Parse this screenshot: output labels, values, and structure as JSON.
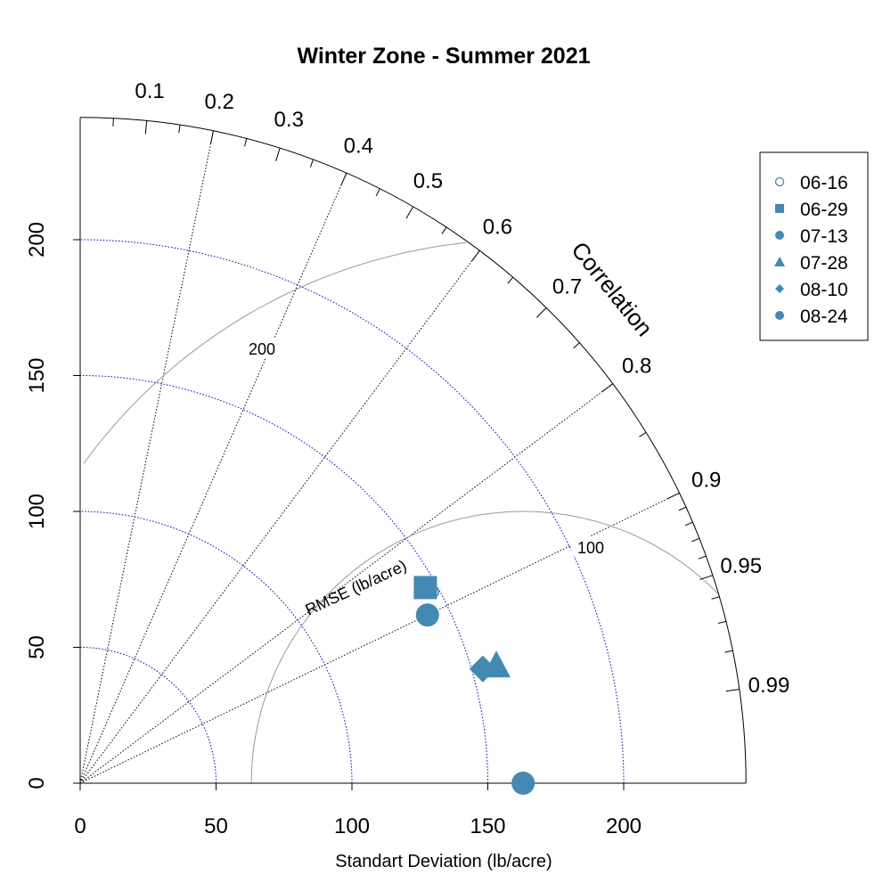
{
  "chart_data": {
    "type": "scatter",
    "subtype": "taylor-diagram",
    "title": "Winter Zone - Summer 2021",
    "xlabel": "Standart Deviation (lb/acre)",
    "correlation_label": "Correlation",
    "rmse_label": "RMSE (lb/acre)",
    "sd_max": 245,
    "sd_ticks": [
      0,
      50,
      100,
      150,
      200
    ],
    "sd_tick_labels": [
      "0",
      "50",
      "100",
      "150",
      "200"
    ],
    "sd_gridlines": [
      50,
      100,
      150,
      200
    ],
    "correlation_ticks": [
      0.1,
      0.2,
      0.3,
      0.4,
      0.5,
      0.6,
      0.7,
      0.8,
      0.9,
      0.95,
      0.99
    ],
    "correlation_tick_labels": [
      "0.1",
      "0.2",
      "0.3",
      "0.4",
      "0.5",
      "0.6",
      "0.7",
      "0.8",
      "0.9",
      "0.95",
      "0.99"
    ],
    "correlation_lines": [
      0.2,
      0.4,
      0.6,
      0.8,
      0.9
    ],
    "minor_correlation_ticks": [
      0.05,
      0.15,
      0.25,
      0.35,
      0.45,
      0.55,
      0.65,
      0.75,
      0.85,
      0.91,
      0.92,
      0.93,
      0.94,
      0.96,
      0.97,
      0.98
    ],
    "reference_sd": 163,
    "rmse_contours": [
      100,
      200
    ],
    "rmse_contour_labels": [
      "100",
      "200"
    ],
    "legend_position": "top-right",
    "series": [
      {
        "name": "06-16",
        "marker": "open-circle",
        "sd": 148,
        "correlation": 0.88
      },
      {
        "name": "06-29",
        "marker": "square",
        "sd": 146,
        "correlation": 0.87
      },
      {
        "name": "07-13",
        "marker": "circle",
        "sd": 142,
        "correlation": 0.9
      },
      {
        "name": "07-28",
        "marker": "triangle",
        "sd": 159,
        "correlation": 0.963
      },
      {
        "name": "08-10",
        "marker": "diamond",
        "sd": 154,
        "correlation": 0.962
      },
      {
        "name": "08-24",
        "marker": "circle-large",
        "sd": 163,
        "correlation": 1.0
      }
    ],
    "colors": {
      "marker": "#4289b4",
      "sd_grid": "#0000cd",
      "correlation_grid": "#000000",
      "rmse_grid": "#999999",
      "axis": "#000000"
    }
  }
}
